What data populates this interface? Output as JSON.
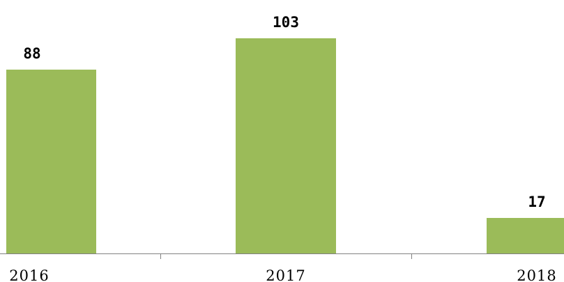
{
  "chart_data": {
    "type": "bar",
    "categories": [
      "2016",
      "2017",
      "2018"
    ],
    "values": [
      88,
      103,
      17
    ],
    "title": "",
    "xlabel": "",
    "ylabel": "",
    "ylim": [
      0,
      120
    ],
    "grid": false,
    "legend": "none",
    "data_labels": [
      "88",
      "103",
      "17"
    ],
    "bar_color": "#9BBB59"
  }
}
